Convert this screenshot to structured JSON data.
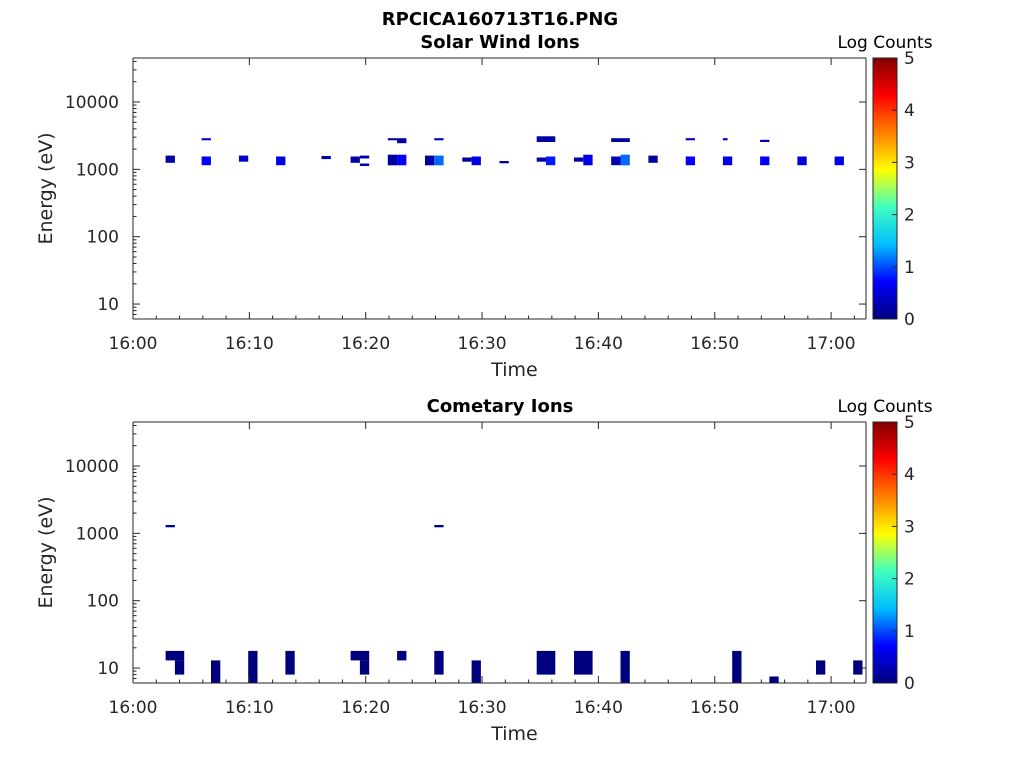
{
  "figure_title": "RPCICA160713T16.PNG",
  "colormap": [
    "#00007f",
    "#0000ff",
    "#00bfff",
    "#40ffbf",
    "#ffff00",
    "#ff8000",
    "#ff0000",
    "#7f0000"
  ],
  "chart_data": [
    {
      "type": "heatmap",
      "title": "Solar Wind Ions",
      "xlabel": "Time",
      "ylabel": "Energy (eV)",
      "x_ticks": [
        "16:00",
        "16:10",
        "16:20",
        "16:30",
        "16:40",
        "16:50",
        "17:00"
      ],
      "x_range_minutes": [
        0,
        63
      ],
      "y_scale": "log",
      "y_ticks": [
        10,
        100,
        1000,
        10000
      ],
      "y_range": [
        6,
        45000
      ],
      "colorbar": {
        "label": "Log Counts",
        "range": [
          0,
          5
        ],
        "ticks": [
          0,
          1,
          2,
          3,
          4,
          5
        ]
      },
      "cells": [
        {
          "t0": 2.8,
          "t1": 3.6,
          "e0": 1250,
          "e1": 1600,
          "v": 0.2
        },
        {
          "t0": 5.9,
          "t1": 6.7,
          "e0": 2700,
          "e1": 2900,
          "v": 0.4
        },
        {
          "t0": 5.9,
          "t1": 6.7,
          "e0": 1150,
          "e1": 1550,
          "v": 0.7
        },
        {
          "t0": 9.1,
          "t1": 9.9,
          "e0": 1300,
          "e1": 1600,
          "v": 0.4
        },
        {
          "t0": 12.3,
          "t1": 13.1,
          "e0": 1150,
          "e1": 1550,
          "v": 0.6
        },
        {
          "t0": 16.2,
          "t1": 17.0,
          "e0": 1420,
          "e1": 1580,
          "v": 0.2
        },
        {
          "t0": 18.7,
          "t1": 19.5,
          "e0": 1250,
          "e1": 1550,
          "v": 0.2
        },
        {
          "t0": 19.5,
          "t1": 20.3,
          "e0": 1450,
          "e1": 1600,
          "v": 0.3
        },
        {
          "t0": 19.5,
          "t1": 20.3,
          "e0": 1120,
          "e1": 1220,
          "v": 0.3
        },
        {
          "t0": 21.9,
          "t1": 23.5,
          "e0": 2700,
          "e1": 2900,
          "v": 0.3
        },
        {
          "t0": 22.7,
          "t1": 23.5,
          "e0": 2450,
          "e1": 2750,
          "v": 0.2
        },
        {
          "t0": 21.9,
          "t1": 22.7,
          "e0": 1150,
          "e1": 1650,
          "v": 0.2
        },
        {
          "t0": 22.7,
          "t1": 23.5,
          "e0": 1150,
          "e1": 1650,
          "v": 0.7
        },
        {
          "t0": 25.1,
          "t1": 25.9,
          "e0": 1150,
          "e1": 1600,
          "v": 0.2
        },
        {
          "t0": 25.9,
          "t1": 26.7,
          "e0": 1150,
          "e1": 1600,
          "v": 1.1
        },
        {
          "t0": 25.9,
          "t1": 26.7,
          "e0": 2700,
          "e1": 2900,
          "v": 0.4
        },
        {
          "t0": 28.3,
          "t1": 29.1,
          "e0": 1300,
          "e1": 1500,
          "v": 0.2
        },
        {
          "t0": 29.1,
          "t1": 29.9,
          "e0": 1150,
          "e1": 1550,
          "v": 0.6
        },
        {
          "t0": 31.5,
          "t1": 32.3,
          "e0": 1230,
          "e1": 1330,
          "v": 0.2
        },
        {
          "t0": 34.7,
          "t1": 36.3,
          "e0": 2550,
          "e1": 3100,
          "v": 0.2
        },
        {
          "t0": 34.7,
          "t1": 35.5,
          "e0": 1300,
          "e1": 1500,
          "v": 0.2
        },
        {
          "t0": 35.5,
          "t1": 36.3,
          "e0": 1150,
          "e1": 1550,
          "v": 0.8
        },
        {
          "t0": 37.9,
          "t1": 38.7,
          "e0": 1300,
          "e1": 1500,
          "v": 0.2
        },
        {
          "t0": 38.7,
          "t1": 39.5,
          "e0": 1150,
          "e1": 1650,
          "v": 0.6
        },
        {
          "t0": 41.1,
          "t1": 42.7,
          "e0": 2550,
          "e1": 2900,
          "v": 0.2
        },
        {
          "t0": 41.1,
          "t1": 41.9,
          "e0": 1150,
          "e1": 1550,
          "v": 0.3
        },
        {
          "t0": 41.9,
          "t1": 42.7,
          "e0": 1150,
          "e1": 1650,
          "v": 1.1
        },
        {
          "t0": 44.3,
          "t1": 45.1,
          "e0": 1250,
          "e1": 1600,
          "v": 0.2
        },
        {
          "t0": 47.5,
          "t1": 48.3,
          "e0": 2700,
          "e1": 2900,
          "v": 0.4
        },
        {
          "t0": 47.5,
          "t1": 48.3,
          "e0": 1150,
          "e1": 1550,
          "v": 0.7
        },
        {
          "t0": 50.7,
          "t1": 51.1,
          "e0": 2700,
          "e1": 2900,
          "v": 0.4
        },
        {
          "t0": 50.7,
          "t1": 51.5,
          "e0": 1150,
          "e1": 1550,
          "v": 0.6
        },
        {
          "t0": 53.9,
          "t1": 54.7,
          "e0": 2550,
          "e1": 2750,
          "v": 0.4
        },
        {
          "t0": 53.9,
          "t1": 54.7,
          "e0": 1150,
          "e1": 1550,
          "v": 0.7
        },
        {
          "t0": 57.1,
          "t1": 57.9,
          "e0": 1150,
          "e1": 1550,
          "v": 0.5
        },
        {
          "t0": 60.3,
          "t1": 61.1,
          "e0": 1150,
          "e1": 1550,
          "v": 0.6
        }
      ]
    },
    {
      "type": "heatmap",
      "title": "Cometary Ions",
      "xlabel": "Time",
      "ylabel": "Energy (eV)",
      "x_ticks": [
        "16:00",
        "16:10",
        "16:20",
        "16:30",
        "16:40",
        "16:50",
        "17:00"
      ],
      "x_range_minutes": [
        0,
        63
      ],
      "y_scale": "log",
      "y_ticks": [
        10,
        100,
        1000,
        10000
      ],
      "y_range": [
        6,
        45000
      ],
      "colorbar": {
        "label": "Log Counts",
        "range": [
          0,
          5
        ],
        "ticks": [
          0,
          1,
          2,
          3,
          4,
          5
        ]
      },
      "cells": [
        {
          "t0": 2.8,
          "t1": 3.6,
          "e0": 1230,
          "e1": 1330,
          "v": 0.1
        },
        {
          "t0": 25.9,
          "t1": 26.7,
          "e0": 1230,
          "e1": 1330,
          "v": 0.1
        },
        {
          "t0": 2.8,
          "t1": 4.4,
          "e0": 13,
          "e1": 18,
          "v": 0
        },
        {
          "t0": 3.6,
          "t1": 4.4,
          "e0": 8,
          "e1": 13,
          "v": 0
        },
        {
          "t0": 6.7,
          "t1": 7.5,
          "e0": 6,
          "e1": 13,
          "v": 0
        },
        {
          "t0": 9.9,
          "t1": 10.7,
          "e0": 6,
          "e1": 18,
          "v": 0
        },
        {
          "t0": 13.1,
          "t1": 13.9,
          "e0": 8,
          "e1": 18,
          "v": 0
        },
        {
          "t0": 18.7,
          "t1": 20.3,
          "e0": 13,
          "e1": 18,
          "v": 0
        },
        {
          "t0": 19.5,
          "t1": 20.3,
          "e0": 8,
          "e1": 13,
          "v": 0
        },
        {
          "t0": 22.7,
          "t1": 23.5,
          "e0": 13,
          "e1": 18,
          "v": 0
        },
        {
          "t0": 25.9,
          "t1": 26.7,
          "e0": 8,
          "e1": 18,
          "v": 0
        },
        {
          "t0": 29.1,
          "t1": 29.9,
          "e0": 6,
          "e1": 13,
          "v": 0
        },
        {
          "t0": 34.7,
          "t1": 36.3,
          "e0": 8,
          "e1": 18,
          "v": 0
        },
        {
          "t0": 37.9,
          "t1": 39.5,
          "e0": 8,
          "e1": 18,
          "v": 0
        },
        {
          "t0": 41.9,
          "t1": 42.7,
          "e0": 6,
          "e1": 18,
          "v": 0
        },
        {
          "t0": 51.5,
          "t1": 52.3,
          "e0": 6,
          "e1": 18,
          "v": 0
        },
        {
          "t0": 54.7,
          "t1": 55.5,
          "e0": 6,
          "e1": 7.5,
          "v": 0
        },
        {
          "t0": 58.7,
          "t1": 59.5,
          "e0": 8,
          "e1": 13,
          "v": 0
        },
        {
          "t0": 61.9,
          "t1": 62.7,
          "e0": 8,
          "e1": 13,
          "v": 0
        }
      ]
    }
  ]
}
